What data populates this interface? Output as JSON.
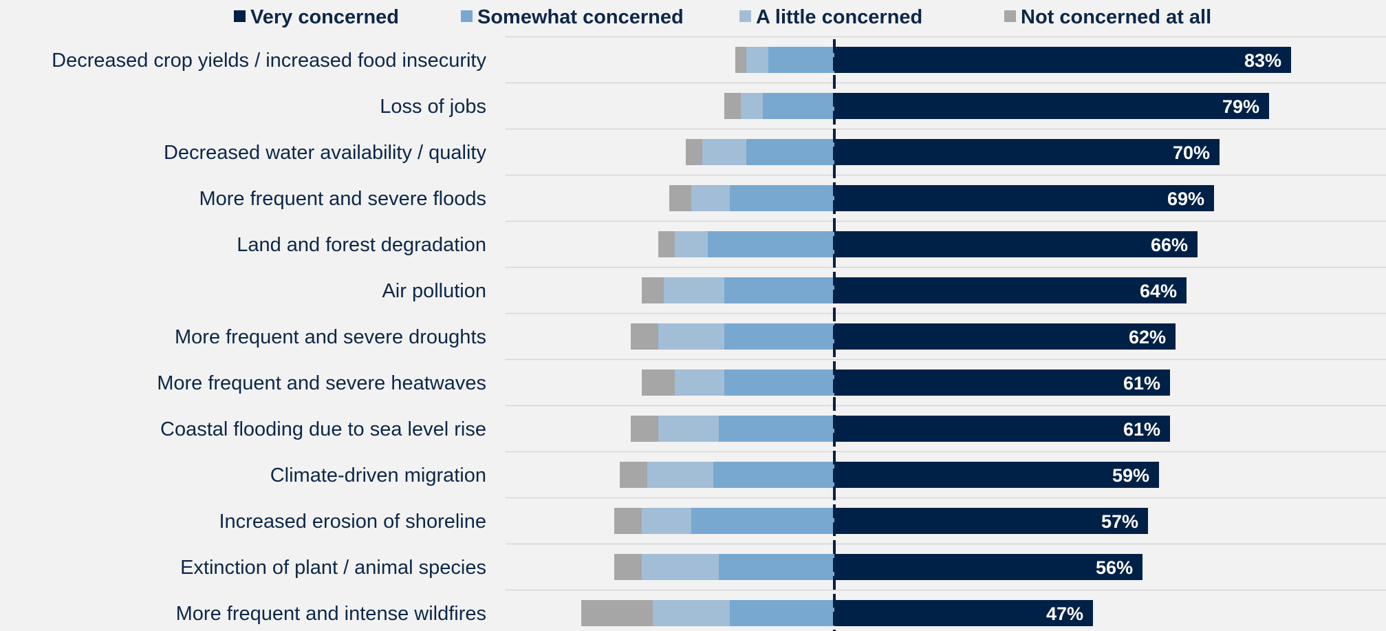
{
  "chart_data": {
    "type": "bar",
    "orientation": "horizontal-diverging",
    "categories": [
      "Decreased crop yields / increased food insecurity",
      "Loss of jobs",
      "Decreased water availability / quality",
      "More frequent and severe floods",
      "Land and forest degradation",
      "Air pollution",
      "More frequent and severe droughts",
      "More frequent and severe heatwaves",
      "Coastal flooding due to sea level rise",
      "Climate-driven migration",
      "Increased erosion of shoreline",
      "Extinction of plant / animal species",
      "More frequent and intense wildfires"
    ],
    "series": [
      {
        "name": "Very concerned",
        "color": "#002147",
        "direction": "right",
        "values": [
          83,
          79,
          70,
          69,
          66,
          64,
          62,
          61,
          61,
          59,
          57,
          56,
          47
        ]
      },
      {
        "name": "Somewhat concerned",
        "color": "#78a8d0",
        "direction": "left",
        "values": [
          12,
          13,
          16,
          19,
          23,
          20,
          20,
          20,
          21,
          22,
          26,
          21,
          19
        ]
      },
      {
        "name": "A little concerned",
        "color": "#a2bdd6",
        "direction": "left",
        "values": [
          4,
          4,
          8,
          7,
          6,
          11,
          12,
          9,
          11,
          12,
          9,
          14,
          14
        ]
      },
      {
        "name": "Not concerned at all",
        "color": "#a6a6a6",
        "direction": "left",
        "values": [
          2,
          3,
          3,
          4,
          3,
          4,
          5,
          6,
          5,
          5,
          5,
          5,
          13
        ]
      }
    ],
    "data_labels": [
      "83%",
      "79%",
      "70%",
      "69%",
      "66%",
      "64%",
      "62%",
      "61%",
      "61%",
      "59%",
      "57%",
      "56%",
      "47%"
    ],
    "legend_position": "top",
    "grid": "horizontal separators",
    "title": "",
    "xlabel": "",
    "ylabel": ""
  }
}
